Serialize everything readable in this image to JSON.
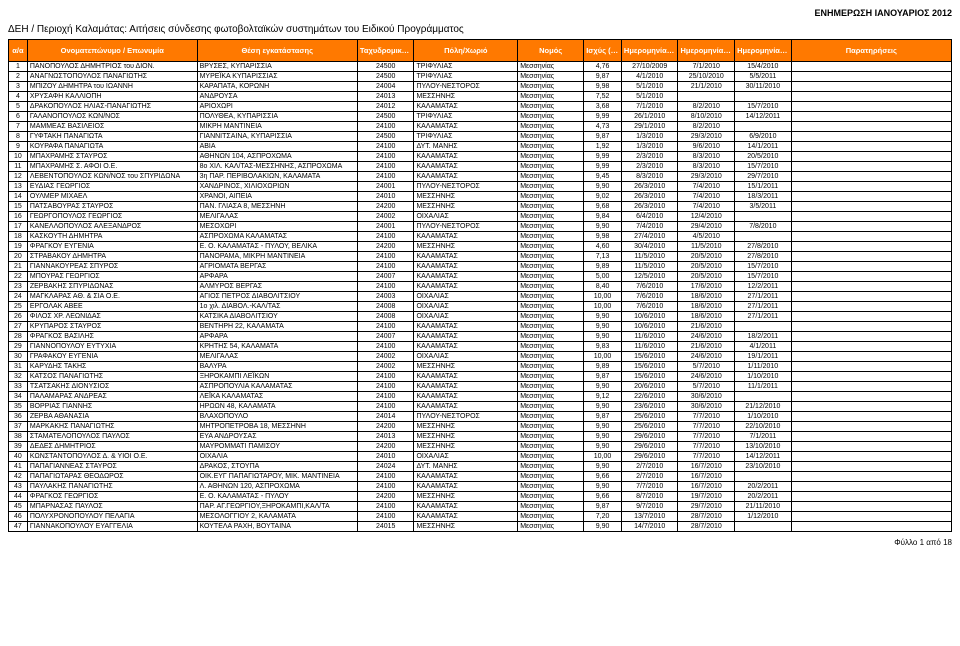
{
  "update_label": "ΕΝΗΜΕΡΩΣΗ ΙΑΝΟΥΑΡΙΟΣ 2012",
  "title": "ΔΕΗ / Περιοχή Καλαμάτας:  Αιτήσεις σύνδεσης φωτοβολταϊκών συστημάτων του Ειδικού Προγράμματος",
  "footer": "Φύλλο 1 από 18",
  "columns": [
    "α/α",
    "Ονοματεπώνυμο / Επωνυμία",
    "Θέση εγκατάστασης",
    "Ταχυδρομικός Κωδικός",
    "Πόλη/Χωριό",
    "Νομός",
    "Ισχύς (kWp)",
    "Ημερομηνία αίτησης",
    "Ημερομηνία Προσφοράς Σύνδεσης",
    "Ημερομηνία ενεργοποίησης",
    "Παρατηρήσεις"
  ],
  "rows": [
    [
      "1",
      "ΠΑΝΟΠΟΥΛΟΣ ΔΗΜΗΤΡΙΟΣ του ΔΙΟΝ.",
      "ΒΡΥΣΕΣ, ΚΥΠΑΡΙΣΣΙΑ",
      "24500",
      "ΤΡΙΦΥΛΙΑΣ",
      "Μεσσηνίας",
      "4,76",
      "27/10/2009",
      "7/1/2010",
      "15/4/2010",
      ""
    ],
    [
      "2",
      "ΑΝΑΓΝΩΣΤΟΠΟΥΛΟΣ ΠΑΝΑΓΙΩΤΗΣ",
      "ΜΥΡΕΪΚΑ ΚΥΠΑΡΙΣΣΙΑΣ",
      "24500",
      "ΤΡΙΦΥΛΙΑΣ",
      "Μεσσηνίας",
      "9,87",
      "4/1/2010",
      "25/10/2010",
      "5/5/2011",
      ""
    ],
    [
      "3",
      "ΜΠΙΖΟΥ ΔΗΜΗΤΡΑ του ΙΩΑΝΝΗ",
      "ΚΑΡΑΠΑΤΑ, ΚΟΡΩΝΗ",
      "24004",
      "ΠΥΛΟΥ-ΝΕΣΤΟΡΟΣ",
      "Μεσσηνίας",
      "9,98",
      "5/1/2010",
      "21/1/2010",
      "30/11/2010",
      ""
    ],
    [
      "4",
      "ΧΡΥΣΑΦΗ ΚΑΛΛΙΟΠΗ",
      "ΑΝΔΡΟΥΣΑ",
      "24013",
      "ΜΕΣΣΗΝΗΣ",
      "Μεσσηνίας",
      "7,52",
      "5/1/2010",
      "",
      "",
      ""
    ],
    [
      "5",
      "ΔΡΑΚΟΠΟΥΛΟΣ ΗΛΙΑΣ-ΠΑΝΑΓΙΩΤΗΣ",
      "ΑΡΙΟΧΩΡΙ",
      "24012",
      "ΚΑΛΑΜΑΤΑΣ",
      "Μεσσηνίας",
      "3,68",
      "7/1/2010",
      "8/2/2010",
      "15/7/2010",
      ""
    ],
    [
      "6",
      "ΓΑΛΑΝΟΠΟΥΛΟΣ ΚΩΝ/ΝΟΣ",
      "ΠΟΛΥΘΕΑ, ΚΥΠΑΡΙΣΣΙΑ",
      "24500",
      "ΤΡΙΦΥΛΙΑΣ",
      "Μεσσηνίας",
      "9,99",
      "26/1/2010",
      "8/10/2010",
      "14/12/2011",
      ""
    ],
    [
      "7",
      "ΜΑΜΜΕΑΣ ΒΑΣΙΛΕΙΟΣ",
      "ΜΙΚΡΗ ΜΑΝΤΙΝΕΙΑ",
      "24100",
      "ΚΑΛΑΜΑΤΑΣ",
      "Μεσσηνίας",
      "4,73",
      "29/1/2010",
      "8/2/2010",
      "",
      ""
    ],
    [
      "8",
      "ΓΥΦΤΑΚΗ ΠΑΝΑΓΙΩΤΑ",
      "ΓΙΑΝΝΙΤΣΑΙΝΑ, ΚΥΠΑΡΙΣΣΙΑ",
      "24500",
      "ΤΡΙΦΥΛΙΑΣ",
      "Μεσσηνίας",
      "9,87",
      "1/3/2010",
      "29/3/2010",
      "6/9/2010",
      ""
    ],
    [
      "9",
      "ΚΟΥΡΑΦΑ ΠΑΝΑΓΙΩΤΑ",
      "ΑΒΙΑ",
      "24100",
      "ΔΥΤ. ΜΑΝΗΣ",
      "Μεσσηνίας",
      "1,92",
      "1/3/2010",
      "9/6/2010",
      "14/1/2011",
      ""
    ],
    [
      "10",
      "ΜΠΑΧΡΑΜΗΣ ΣΤΑΥΡΟΣ",
      "ΑΘΗΝΩΝ 104, ΑΣΠΡΟΧΩΜΑ",
      "24100",
      "ΚΑΛΑΜΑΤΑΣ",
      "Μεσσηνίας",
      "9,99",
      "2/3/2010",
      "8/3/2010",
      "20/5/2010",
      ""
    ],
    [
      "11",
      "ΜΠΑΧΡΑΜΗΣ Σ. ΑΦΟΙ Ο.Ε.",
      "8ο ΧΙΛ. ΚΑΛ/ΤΑΣ-ΜΕΣΣΗΝΗΣ, ΑΣΠΡΟΧΩΜΑ",
      "24100",
      "ΚΑΛΑΜΑΤΑΣ",
      "Μεσσηνίας",
      "9,99",
      "2/3/2010",
      "8/3/2010",
      "15/7/2010",
      ""
    ],
    [
      "12",
      "ΛΕΒΕΝΤΟΠΟΥΛΟΣ ΚΩΝ/ΝΟΣ του ΣΠΥΡΙΔΩΝΑ",
      "3η ΠΑΡ. ΠΕΡΙΒΟΛΑΚΙΩΝ, ΚΑΛΑΜΑΤΑ",
      "24100",
      "ΚΑΛΑΜΑΤΑΣ",
      "Μεσσηνίας",
      "9,45",
      "8/3/2010",
      "29/3/2010",
      "29/7/2010",
      ""
    ],
    [
      "13",
      "ΕΥΔΙΑΣ ΓΕΩΡΓΙΟΣ",
      "ΧΑΝΔΡΙΝΟΣ, ΧΙΛΙΟΧΩΡΙΩΝ",
      "24001",
      "ΠΥΛΟΥ-ΝΕΣΤΟΡΟΣ",
      "Μεσσηνίας",
      "9,90",
      "26/3/2010",
      "7/4/2010",
      "15/1/2011",
      ""
    ],
    [
      "14",
      "ΟΥΛΜΕΡ ΜΙΧΑΕΛ",
      "ΧΡΑΝΟΙ, ΑΙΠΕΙΑ",
      "24010",
      "ΜΕΣΣΗΝΗΣ",
      "Μεσσηνίας",
      "9,02",
      "26/3/2010",
      "7/4/2010",
      "18/3/2011",
      ""
    ],
    [
      "15",
      "ΠΑΤΣΑΒΟΥΡΑΣ ΣΤΑΥΡΟΣ",
      "ΠΑΝ. ΓΛΙΑΣΑ 8, ΜΕΣΣΗΝΗ",
      "24200",
      "ΜΕΣΣΗΝΗΣ",
      "Μεσσηνίας",
      "9,68",
      "26/3/2010",
      "7/4/2010",
      "3/5/2011",
      ""
    ],
    [
      "16",
      "ΓΕΩΡΓΟΠΟΥΛΟΣ ΓΕΩΡΓΙΟΣ",
      "ΜΕΛΙΓΑΛΑΣ",
      "24002",
      "ΟΙΧΑΛΙΑΣ",
      "Μεσσηνίας",
      "9,84",
      "6/4/2010",
      "12/4/2010",
      "",
      ""
    ],
    [
      "17",
      "ΚΑΝΕΛΛΟΠΟΥΛΟΣ ΑΛΕΞΑΝΔΡΟΣ",
      "ΜΕΣΟΧΩΡΙ",
      "24001",
      "ΠΥΛΟΥ-ΝΕΣΤΟΡΟΣ",
      "Μεσσηνίας",
      "9,90",
      "7/4/2010",
      "29/4/2010",
      "7/8/2010",
      ""
    ],
    [
      "18",
      "ΚΑΣΚΟΥΤΗ ΔΗΜΗΤΡΑ",
      "ΑΣΠΡΟΧΩΜΑ ΚΑΛΑΜΑΤΑΣ",
      "24100",
      "ΚΑΛΑΜΑΤΑΣ",
      "Μεσσηνίας",
      "9,98",
      "27/4/2010",
      "4/5/2010",
      "",
      ""
    ],
    [
      "19",
      "ΦΡΑΓΚΟΥ ΕΥΓΕΝΙΑ",
      "Ε. Ο. ΚΑΛΑΜΑΤΑΣ - ΠΥΛΟΥ, ΒΕΛΙΚΑ",
      "24200",
      "ΜΕΣΣΗΝΗΣ",
      "Μεσσηνίας",
      "4,60",
      "30/4/2010",
      "11/5/2010",
      "27/8/2010",
      ""
    ],
    [
      "20",
      "ΣΤΡΑΒΑΚΟΥ ΔΗΜΗΤΡΑ",
      "ΠΑΝΟΡΑΜΑ, ΜΙΚΡΗ ΜΑΝΤΙΝΕΙΑ",
      "24100",
      "ΚΑΛΑΜΑΤΑΣ",
      "Μεσσηνίας",
      "7,13",
      "11/5/2010",
      "20/5/2010",
      "27/8/2010",
      ""
    ],
    [
      "21",
      "ΓΙΑΝΝΑΚΟΥΡΕΑΣ ΣΠΥΡΟΣ",
      "ΑΓΡΙΟΜΑΤΑ ΒΕΡΓΑΣ",
      "24100",
      "ΚΑΛΑΜΑΤΑΣ",
      "Μεσσηνίας",
      "9,89",
      "11/5/2010",
      "20/5/2010",
      "15/7/2010",
      ""
    ],
    [
      "22",
      "ΜΠΟΥΡΑΣ ΓΕΩΡΓΙΟΣ",
      "ΑΡΦΑΡΑ",
      "24007",
      "ΚΑΛΑΜΑΤΑΣ",
      "Μεσσηνίας",
      "5,00",
      "12/5/2010",
      "20/5/2010",
      "15/7/2010",
      ""
    ],
    [
      "23",
      "ΖΕΡΒΑΚΗΣ ΣΠΥΡΙΔΩΝΑΣ",
      "ΑΛΜΥΡΟΣ ΒΕΡΓΑΣ",
      "24100",
      "ΚΑΛΑΜΑΤΑΣ",
      "Μεσσηνίας",
      "8,40",
      "7/6/2010",
      "17/6/2010",
      "12/2/2011",
      ""
    ],
    [
      "24",
      "ΜΑΓΚΛΑΡΑΣ ΑΘ. & ΣΙΑ Ο.Ε.",
      "ΑΓΙΟΣ ΠΕΤΡΟΣ ΔΙΑΒΟΛΙΤΣΙΟΥ",
      "24003",
      "ΟΙΧΑΛΙΑΣ",
      "Μεσσηνίας",
      "10,00",
      "7/6/2010",
      "18/6/2010",
      "27/1/2011",
      ""
    ],
    [
      "25",
      "ΕΡΓΟΛΑΚ ΑΒΕΕ",
      "1ο χιλ. ΔΙΑΒΟΛ.-ΚΑΛ/ΤΑΣ",
      "24008",
      "ΟΙΧΑΛΙΑΣ",
      "Μεσσηνίας",
      "10,00",
      "7/6/2010",
      "18/6/2010",
      "27/1/2011",
      ""
    ],
    [
      "26",
      "ΦΙΛΟΣ ΧΡ. ΛΕΩΝΙΔΑΣ",
      "ΚΑΤΣΙΚΑ ΔΙΑΒΟΛΙΤΣΙΟΥ",
      "24008",
      "ΟΙΧΑΛΙΑΣ",
      "Μεσσηνίας",
      "9,90",
      "10/6/2010",
      "18/6/2010",
      "27/1/2011",
      ""
    ],
    [
      "27",
      "ΚΡΥΠΑΡΟΣ ΣΤΑΥΡΟΣ",
      "ΒΕΝΤΗΡΗ 22, ΚΑΛΑΜΑΤΑ",
      "24100",
      "ΚΑΛΑΜΑΤΑΣ",
      "Μεσσηνίας",
      "9,90",
      "10/6/2010",
      "21/6/2010",
      "",
      ""
    ],
    [
      "28",
      "ΦΡΑΓΚΟΣ ΒΑΣΙΛΗΣ",
      "ΑΡΦΑΡΑ",
      "24007",
      "ΚΑΛΑΜΑΤΑΣ",
      "Μεσσηνίας",
      "9,90",
      "11/6/2010",
      "24/6/2010",
      "18/2/2011",
      ""
    ],
    [
      "29",
      "ΓΙΑΝΝΟΠΟΥΛΟΥ ΕΥΤΥΧΙΑ",
      "ΚΡΗΤΗΣ 54, ΚΑΛΑΜΑΤΑ",
      "24100",
      "ΚΑΛΑΜΑΤΑΣ",
      "Μεσσηνίας",
      "9,83",
      "11/6/2010",
      "21/6/2010",
      "4/1/2011",
      ""
    ],
    [
      "30",
      "ΓΡΑΦΑΚΟΥ ΕΥΓΕΝΙΑ",
      "ΜΕΛΙΓΑΛΑΣ",
      "24002",
      "ΟΙΧΑΛΙΑΣ",
      "Μεσσηνίας",
      "10,00",
      "15/6/2010",
      "24/6/2010",
      "19/1/2011",
      ""
    ],
    [
      "31",
      "ΚΑΡΥΔΗΣ ΤΑΚΗΣ",
      "ΒΑΛΥΡΑ",
      "24002",
      "ΜΕΣΣΗΝΗΣ",
      "Μεσσηνίας",
      "9,89",
      "15/6/2010",
      "5/7/2010",
      "1/11/2010",
      ""
    ],
    [
      "32",
      "ΚΑΤΣΟΣ ΠΑΝΑΓΙΩΤΗΣ",
      "ΞΗΡΟΚΑΜΠΙ ΛΕΪΚΩΝ",
      "24100",
      "ΚΑΛΑΜΑΤΑΣ",
      "Μεσσηνίας",
      "9,87",
      "15/6/2010",
      "24/6/2010",
      "1/10/2010",
      ""
    ],
    [
      "33",
      "ΤΣΑΤΣΑΚΗΣ ΔΙΟΝΥΣΙΟΣ",
      "ΑΣΠΡΟΠΟΥΛΙΑ ΚΑΛΑΜΑΤΑΣ",
      "24100",
      "ΚΑΛΑΜΑΤΑΣ",
      "Μεσσηνίας",
      "9,90",
      "20/6/2010",
      "5/7/2010",
      "11/1/2011",
      ""
    ],
    [
      "34",
      "ΠΑΛΑΜΑΡΑΣ ΑΝΔΡΕΑΣ",
      "ΛΕΪΚΑ ΚΑΛΑΜΑΤΑΣ",
      "24100",
      "ΚΑΛΑΜΑΤΑΣ",
      "Μεσσηνίας",
      "9,12",
      "22/6/2010",
      "30/6/2010",
      "",
      ""
    ],
    [
      "35",
      "ΒΟΡΡΙΑΣ ΓΙΑΝΝΗΣ",
      "ΗΡΩΩΝ 48, ΚΑΛΑΜΑΤΑ",
      "24100",
      "ΚΑΛΑΜΑΤΑΣ",
      "Μεσσηνίας",
      "9,90",
      "23/6/2010",
      "30/6/2010",
      "21/12/2010",
      ""
    ],
    [
      "36",
      "ΖΕΡΒΑ ΑΘΑΝΑΣΙΑ",
      "ΒΛΑΧΟΠΟΥΛΟ",
      "24014",
      "ΠΥΛΟΥ-ΝΕΣΤΟΡΟΣ",
      "Μεσσηνίας",
      "9,87",
      "25/6/2010",
      "7/7/2010",
      "1/10/2010",
      ""
    ],
    [
      "37",
      "ΜΑΡΚΑΚΗΣ ΠΑΝΑΓΙΩΤΗΣ",
      "ΜΗΤΡΟΠΕΤΡΟΒΑ 18, ΜΕΣΣΗΝΗ",
      "24200",
      "ΜΕΣΣΗΝΗΣ",
      "Μεσσηνίας",
      "9,90",
      "25/6/2010",
      "7/7/2010",
      "22/10/2010",
      ""
    ],
    [
      "38",
      "ΣΤΑΜΑΤΕΛΟΠΟΥΛΟΣ ΠΑΥΛΟΣ",
      "ΕΥΑ ΑΝΔΡΟΥΣΑΣ",
      "24013",
      "ΜΕΣΣΗΝΗΣ",
      "Μεσσηνίας",
      "9,90",
      "29/6/2010",
      "7/7/2010",
      "7/1/2011",
      ""
    ],
    [
      "39",
      "ΔΕΔΕΣ ΔΗΜΗΤΡΙΟΣ",
      "ΜΑΥΡΟΜΜΑΤΙ ΠΑΜΙΣΟΥ",
      "24200",
      "ΜΕΣΣΗΝΗΣ",
      "Μεσσηνίας",
      "9,90",
      "29/6/2010",
      "7/7/2010",
      "13/10/2010",
      ""
    ],
    [
      "40",
      "ΚΩΝΣΤΑΝΤΟΠΟΥΛΟΣ Δ. & ΥΙΟΙ Ο.Ε.",
      "ΟΙΧΑΛΙΑ",
      "24010",
      "ΟΙΧΑΛΙΑΣ",
      "Μεσσηνίας",
      "10,00",
      "29/6/2010",
      "7/7/2010",
      "14/12/2011",
      ""
    ],
    [
      "41",
      "ΠΑΠΑΓΙΑΝΝΕΑΣ ΣΤΑΥΡΟΣ",
      "ΔΡΑΚΟΣ, ΣΤΟΥΠΑ",
      "24024",
      "ΔΥΤ. ΜΑΝΗΣ",
      "Μεσσηνίας",
      "9,90",
      "2/7/2010",
      "16/7/2010",
      "23/10/2010",
      ""
    ],
    [
      "42",
      "ΠΑΠΑΓΙΩΤΑΡΑΣ ΘΕΟΔΩΡΟΣ",
      "ΟΙΚ.ΕΥΓ ΠΑΠΑΓΙΩΤΑΡΟΥ, ΜΙΚ. ΜΑΝΤΙΝΕΙΑ",
      "24100",
      "ΚΑΛΑΜΑΤΑΣ",
      "Μεσσηνίας",
      "9,66",
      "2/7/2010",
      "16/7/2010",
      "",
      ""
    ],
    [
      "43",
      "ΠΑΥΛΑΚΗΣ ΠΑΝΑΓΙΩΤΗΣ",
      "Λ. ΑΘΗΝΩΝ 120, ΑΣΠΡΟΧΩΜΑ",
      "24100",
      "ΚΑΛΑΜΑΤΑΣ",
      "Μεσσηνίας",
      "9,90",
      "7/7/2010",
      "16/7/2010",
      "20/2/2011",
      ""
    ],
    [
      "44",
      "ΦΡΑΓΚΟΣ ΓΕΩΡΓΙΟΣ",
      "Ε. Ο. ΚΑΛΑΜΑΤΑΣ - ΠΥΛΟΥ",
      "24200",
      "ΜΕΣΣΗΝΗΣ",
      "Μεσσηνίας",
      "9,66",
      "8/7/2010",
      "19/7/2010",
      "20/2/2011",
      ""
    ],
    [
      "45",
      "ΜΠΑΡΝΑΣΑΣ ΠΑΥΛΟΣ",
      "ΠΑΡ. ΑΓ.ΓΕΩΡΓΙΟΥ,ΞΗΡΟΚΑΜΠΙ,ΚΑΛ/ΤΑ",
      "24100",
      "ΚΑΛΑΜΑΤΑΣ",
      "Μεσσηνίας",
      "9,87",
      "9/7/2010",
      "29/7/2010",
      "21/11/2010",
      ""
    ],
    [
      "46",
      "ΠΟΛΥΧΡΟΝΟΠΟΥΛΟΥ ΠΕΛΑΓΙΑ",
      "ΜΕΣΟΛΟΓΓΙΟΥ 2, ΚΑΛΑΜΑΤΑ",
      "24100",
      "ΚΑΛΑΜΑΤΑΣ",
      "Μεσσηνίας",
      "7,20",
      "13/7/2010",
      "28/7/2010",
      "1/12/2010",
      ""
    ],
    [
      "47",
      "ΓΙΑΝΝΑΚΟΠΟΥΛΟΥ ΕΥΑΓΓΕΛΙΑ",
      "ΚΟΥΤΕΛΑ ΡΑΧΗ, ΒΟΥΤΑΙΝΑ",
      "24015",
      "ΜΕΣΣΗΝΗΣ",
      "Μεσσηνίας",
      "9,90",
      "14/7/2010",
      "28/7/2010",
      "",
      ""
    ]
  ]
}
